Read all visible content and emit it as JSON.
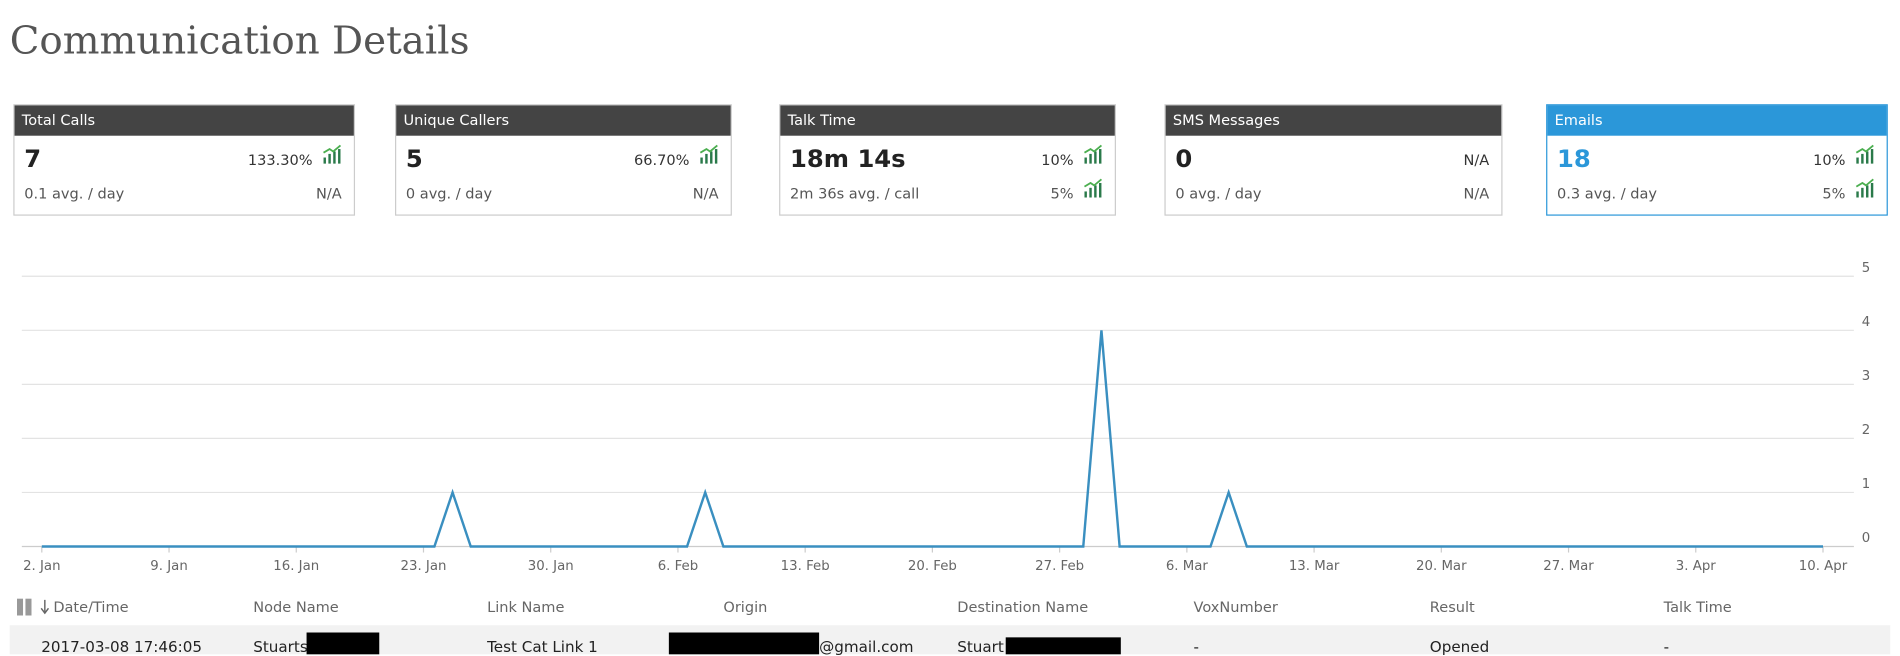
{
  "header": {
    "title": "Communication Details"
  },
  "cards": [
    {
      "title": "Total Calls",
      "value": "7",
      "change": "133.30%",
      "sub": "0.1 avg. / day",
      "sub_change": "N/A"
    },
    {
      "title": "Unique Callers",
      "value": "5",
      "change": "66.70%",
      "sub": "0 avg. / day",
      "sub_change": "N/A"
    },
    {
      "title": "Talk Time",
      "value": "18m 14s",
      "change": "10%",
      "sub": "2m 36s avg. / call",
      "sub_change": "5%"
    },
    {
      "title": "SMS Messages",
      "value": "0",
      "change": "N/A",
      "sub": "0 avg. / day",
      "sub_change": "N/A"
    },
    {
      "title": "Emails",
      "value": "18",
      "change": "10%",
      "sub": "0.3 avg. / day",
      "sub_change": "5%"
    }
  ],
  "chart_data": {
    "type": "line",
    "x": [
      0,
      21.6,
      22.6,
      23.6,
      35.5,
      36.5,
      37.5,
      57.3,
      58.3,
      59.3,
      64.3,
      65.3,
      66.3,
      98
    ],
    "series": [
      {
        "color": "#3a8fc0",
        "values": [
          0,
          0,
          1,
          0,
          0,
          1,
          0,
          0,
          4,
          0,
          0,
          1,
          0,
          0
        ]
      }
    ],
    "xlim": [
      -1.1,
      99.7
    ],
    "xticks": [
      {
        "value": 0,
        "label": "2. Jan"
      },
      {
        "value": 7,
        "label": "9. Jan"
      },
      {
        "value": 14,
        "label": "16. Jan"
      },
      {
        "value": 21,
        "label": "23. Jan"
      },
      {
        "value": 28,
        "label": "30. Jan"
      },
      {
        "value": 35,
        "label": "6. Feb"
      },
      {
        "value": 42,
        "label": "13. Feb"
      },
      {
        "value": 49,
        "label": "20. Feb"
      },
      {
        "value": 56,
        "label": "27. Feb"
      },
      {
        "value": 63,
        "label": "6. Mar"
      },
      {
        "value": 70,
        "label": "13. Mar"
      },
      {
        "value": 77,
        "label": "20. Mar"
      },
      {
        "value": 84,
        "label": "27. Mar"
      },
      {
        "value": 91,
        "label": "3. Apr"
      },
      {
        "value": 98,
        "label": "10. Apr"
      }
    ],
    "ylim": [
      0,
      5
    ],
    "yticks": [
      0,
      1,
      2,
      3,
      4,
      5
    ],
    "grid": true
  },
  "table": {
    "columns": [
      "Date/Time",
      "Node Name",
      "Link Name",
      "Origin",
      "Destination Name",
      "VoxNumber",
      "Result",
      "Talk Time"
    ],
    "rows": [
      [
        "2017-03-08 17:46:05",
        "Stuarts",
        "Test Cat Link 1",
        "@gmail.com",
        "Stuart",
        "-",
        "Opened",
        "-"
      ]
    ]
  }
}
